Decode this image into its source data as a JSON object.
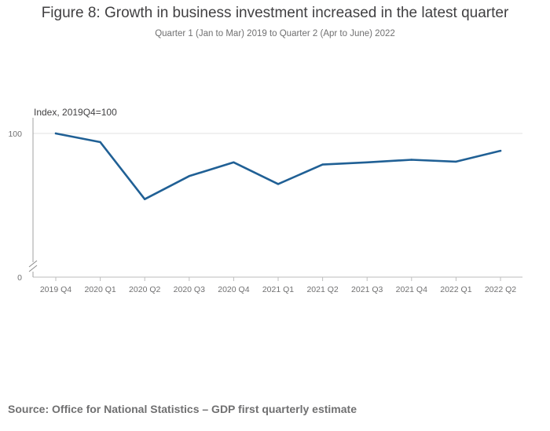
{
  "page": {
    "title": "Figure 8: Growth in business investment increased in the latest quarter",
    "subtitle": "Quarter 1 (Jan to Mar) 2019 to Quarter 2 (Apr to June) 2022",
    "source": "Source: Office for National Statistics – GDP first quarterly estimate"
  },
  "chart_data": {
    "type": "line",
    "title": "Figure 8: Growth in business investment increased in the latest quarter",
    "subtitle": "Quarter 1 (Jan to Mar) 2019 to Quarter 2 (Apr to June) 2022",
    "xlabel": "",
    "ylabel": "Index, 2019Q4=100",
    "categories": [
      "2019 Q4",
      "2020 Q1",
      "2020 Q2",
      "2020 Q3",
      "2020 Q4",
      "2021 Q1",
      "2021 Q2",
      "2021 Q3",
      "2021 Q4",
      "2022 Q1",
      "2022 Q2"
    ],
    "series": [
      {
        "name": "Business investment",
        "color": "#206095",
        "values": [
          100,
          94.0,
          54.5,
          70.5,
          80.0,
          65.0,
          78.5,
          80.0,
          81.8,
          80.5,
          88.0
        ]
      }
    ],
    "y_ticks": [
      "100",
      "0"
    ],
    "y_axis_break": true,
    "grid": "horizontal"
  }
}
